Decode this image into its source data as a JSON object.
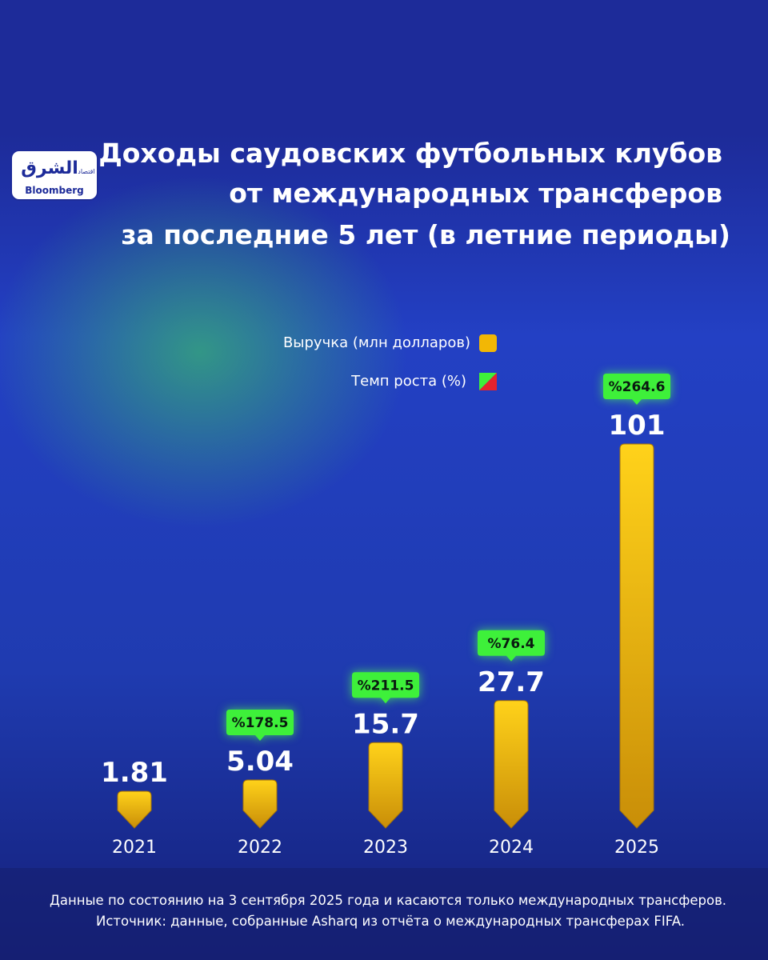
{
  "logo": {
    "arabic": "الشرق",
    "arabic_sub": "اقتصاد",
    "latin": "Bloomberg"
  },
  "chart_data": {
    "type": "bar",
    "title": [
      "Доходы саудовских футбольных клубов",
      "от международных трансферов",
      "за последние 5 лет (в летние периоды)"
    ],
    "categories": [
      "2021",
      "2022",
      "2023",
      "2024",
      "2025"
    ],
    "series": [
      {
        "name": "Выручка (млн долларов)",
        "color": "#f2b705",
        "values": [
          1.81,
          5.04,
          15.7,
          27.7,
          101
        ]
      },
      {
        "name": "Темп роста (%)",
        "color": "#3ef03a",
        "negative_color": "#e5232e",
        "values": [
          null,
          178.5,
          211.5,
          76.4,
          264.6
        ],
        "value_labels": [
          null,
          "%178.5",
          "%211.5",
          "%76.4",
          "%264.6"
        ]
      }
    ],
    "notes": [
      "Данные по состоянию на 3 сентября 2025 года и касаются только международных трансферов.",
      "Источник: данные, собранные Asharq из отчёта о международных трансферах FIFA."
    ]
  }
}
